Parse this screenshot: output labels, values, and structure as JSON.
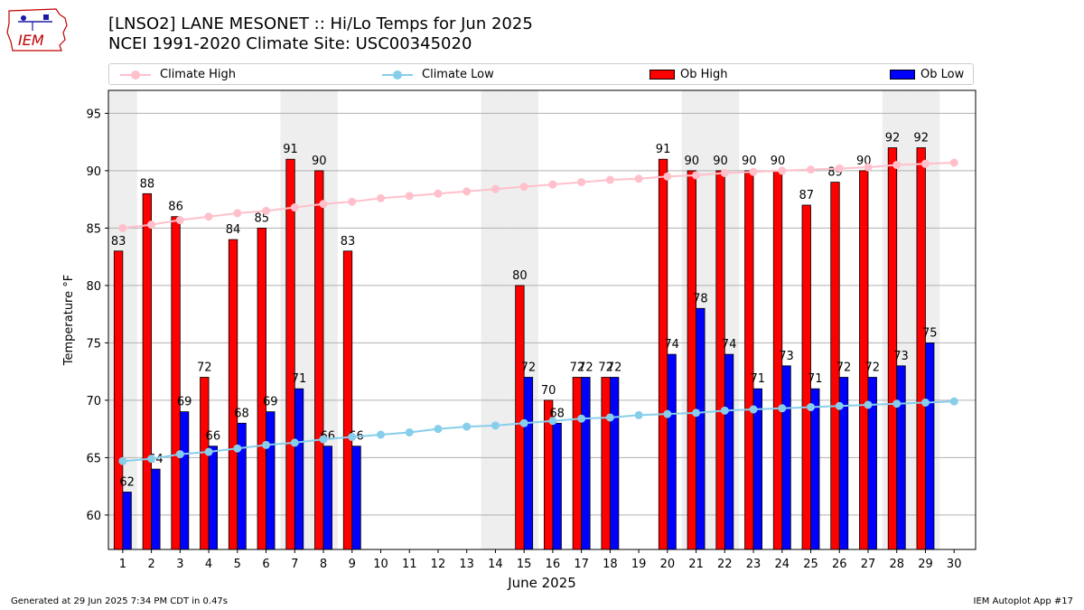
{
  "header": {
    "title_line1": "[LNSO2] LANE MESONET :: Hi/Lo Temps for Jun 2025",
    "title_line2": "NCEI 1991-2020 Climate Site: USC00345020",
    "logo_text": "IEM"
  },
  "legend": {
    "climate_high": "Climate High",
    "climate_low": "Climate Low",
    "ob_high": "Ob High",
    "ob_low": "Ob Low"
  },
  "colors": {
    "ob_high": "#ff0000",
    "ob_low": "#0000ff",
    "climate_high": "#ffc0cb",
    "climate_low": "#87ceeb",
    "weekend_band": "#eeeeee",
    "grid": "#b0b0b0"
  },
  "chart_data": {
    "type": "bar",
    "xlabel": "June 2025",
    "ylabel": "Temperature °F",
    "ylim": [
      57,
      97
    ],
    "yticks": [
      60,
      65,
      70,
      75,
      80,
      85,
      90,
      95
    ],
    "grid": "horizontal",
    "legend_placement": "top",
    "categories": [
      1,
      2,
      3,
      4,
      5,
      6,
      7,
      8,
      9,
      10,
      11,
      12,
      13,
      14,
      15,
      16,
      17,
      18,
      19,
      20,
      21,
      22,
      23,
      24,
      25,
      26,
      27,
      28,
      29,
      30
    ],
    "weekend_days": [
      1,
      7,
      8,
      14,
      15,
      21,
      22,
      28,
      29
    ],
    "series": [
      {
        "name": "Ob High",
        "kind": "bar",
        "values": [
          83,
          88,
          86,
          72,
          84,
          85,
          91,
          90,
          83,
          null,
          null,
          null,
          null,
          null,
          80,
          70,
          72,
          72,
          null,
          91,
          90,
          90,
          90,
          90,
          87,
          89,
          90,
          92,
          92,
          null
        ]
      },
      {
        "name": "Ob Low",
        "kind": "bar",
        "values": [
          62,
          64,
          69,
          66,
          68,
          69,
          71,
          66,
          66,
          null,
          null,
          null,
          null,
          null,
          72,
          68,
          72,
          72,
          null,
          74,
          78,
          74,
          71,
          73,
          71,
          72,
          72,
          73,
          75,
          null
        ]
      },
      {
        "name": "Climate High",
        "kind": "line",
        "values": [
          85.0,
          85.3,
          85.7,
          86.0,
          86.3,
          86.5,
          86.8,
          87.1,
          87.3,
          87.6,
          87.8,
          88.0,
          88.2,
          88.4,
          88.6,
          88.8,
          89.0,
          89.2,
          89.3,
          89.5,
          89.6,
          89.8,
          89.9,
          90.0,
          90.1,
          90.2,
          90.3,
          90.5,
          90.6,
          90.7
        ]
      },
      {
        "name": "Climate Low",
        "kind": "line",
        "values": [
          64.7,
          64.9,
          65.3,
          65.5,
          65.8,
          66.1,
          66.3,
          66.6,
          66.8,
          67.0,
          67.2,
          67.5,
          67.7,
          67.8,
          68.0,
          68.2,
          68.4,
          68.5,
          68.7,
          68.8,
          68.9,
          69.1,
          69.2,
          69.3,
          69.4,
          69.5,
          69.6,
          69.7,
          69.8,
          69.9
        ]
      }
    ]
  },
  "footer": {
    "generated": "Generated at 29 Jun 2025 7:34 PM CDT in 0.47s",
    "app": "IEM Autoplot App #17"
  }
}
